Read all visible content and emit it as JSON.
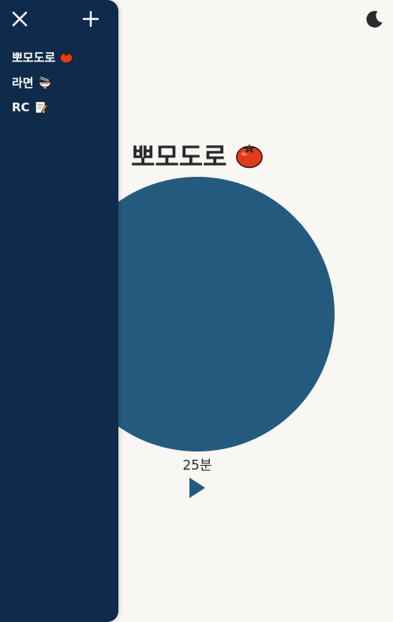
{
  "sidebar": {
    "close_icon": "close-icon",
    "add_icon": "plus-icon",
    "items": [
      {
        "label": "뽀모도로",
        "icon": "tomato-icon"
      },
      {
        "label": "라면",
        "icon": "ramen-icon"
      },
      {
        "label": "RC",
        "icon": "memo-icon"
      }
    ]
  },
  "header": {
    "theme_icon": "moon-icon"
  },
  "timer": {
    "title": "뽀모도로",
    "title_icon": "tomato-icon",
    "duration_label": "25분",
    "play_icon": "play-icon",
    "circle_color": "#245a7e"
  },
  "colors": {
    "sidebar_bg": "#0f2a4a",
    "page_bg": "#f8f7f4",
    "accent": "#245a7e"
  }
}
